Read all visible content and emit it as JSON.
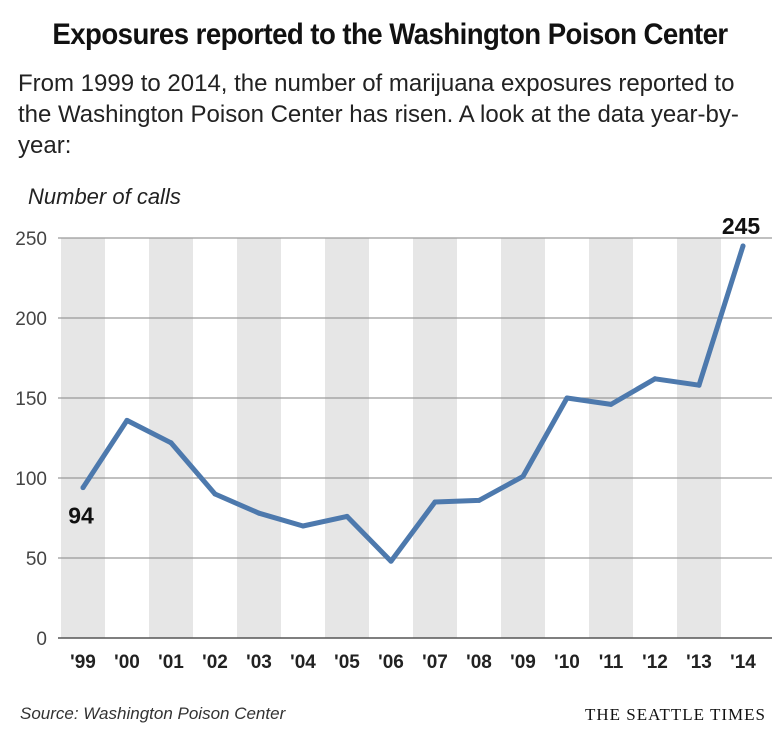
{
  "header": {
    "title": "Exposures reported to the Washington Poison Center",
    "subtitle": "From 1999 to 2014, the number of marijuana exposures reported to the Washington Poison Center has risen. A look at the data year-by-year:"
  },
  "footer": {
    "source": "Source: Washington Poison Center",
    "brand": "THE SEATTLE TIMES"
  },
  "colors": {
    "line": "#4d79ad",
    "band": "#e6e6e6",
    "grid": "#9a9a9a",
    "text": "#222222"
  },
  "chart_data": {
    "type": "line",
    "title": "Exposures reported to the Washington Poison Center",
    "ylabel": "Number of calls",
    "xlabel": "",
    "categories": [
      "'99",
      "'00",
      "'01",
      "'02",
      "'03",
      "'04",
      "'05",
      "'06",
      "'07",
      "'08",
      "'09",
      "'10",
      "'11",
      "'12",
      "'13",
      "'14"
    ],
    "values": [
      94,
      136,
      122,
      90,
      78,
      70,
      76,
      48,
      85,
      86,
      101,
      150,
      146,
      162,
      158,
      245
    ],
    "ylim": [
      0,
      250
    ],
    "yticks": [
      0,
      50,
      100,
      150,
      200,
      250
    ],
    "annotations": [
      {
        "label": "94",
        "index": 0
      },
      {
        "label": "245",
        "index": 15
      }
    ],
    "grid": true,
    "alternating_bands": true
  }
}
